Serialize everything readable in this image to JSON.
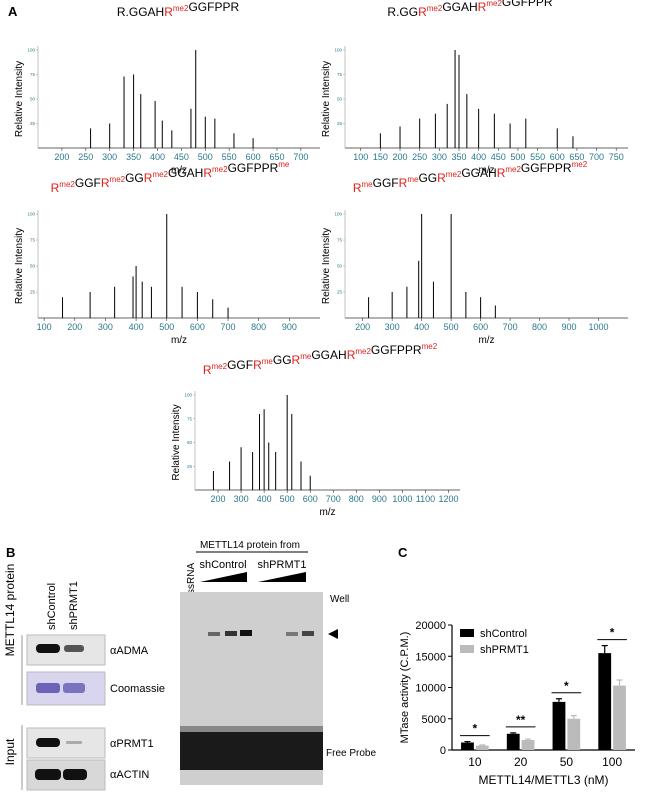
{
  "panel_a": {
    "label": "A"
  },
  "panel_b": {
    "label": "B",
    "blot": {
      "group_labels": [
        "METTL14 protein",
        "Input"
      ],
      "lanes": [
        "shControl",
        "shPRMT1"
      ],
      "rows": [
        "αADMA",
        "Coomassie",
        "αPRMT1",
        "αACTIN"
      ]
    },
    "gel": {
      "header": "METTL14 protein from",
      "lanes": [
        "ssRNA",
        "shControl",
        "shPRMT1"
      ],
      "well": "Well",
      "free_probe": "Free Probe"
    }
  },
  "panel_c": {
    "label": "C"
  },
  "chart_data": [
    {
      "type": "stem",
      "title": [
        {
          "text": "R.GGAH"
        },
        {
          "text": "R",
          "sup": "me2"
        },
        {
          "text": "GGFPPR"
        }
      ],
      "xlabel": "m/z",
      "ylabel": "Relative Intensity",
      "xlim": [
        150,
        740
      ],
      "ylim": [
        0,
        100
      ],
      "xticks": [
        200,
        250,
        300,
        350,
        400,
        450,
        500,
        550,
        600,
        650,
        700
      ],
      "yticks": [
        25,
        50,
        75,
        100
      ],
      "color": "#000000",
      "x": [
        260,
        300,
        330,
        350,
        365,
        395,
        410,
        430,
        470,
        480,
        500,
        520,
        560,
        600
      ],
      "values": [
        20,
        25,
        73,
        75,
        55,
        48,
        28,
        18,
        40,
        100,
        32,
        30,
        15,
        10
      ]
    },
    {
      "type": "stem",
      "title": [
        {
          "text": "R.GG"
        },
        {
          "text": "R",
          "sup": "me2"
        },
        {
          "text": "GGAH"
        },
        {
          "text": "R",
          "sup": "me2"
        },
        {
          "text": "GGFPPR"
        }
      ],
      "xlabel": "m/z",
      "ylabel": "Relative Intensity",
      "xlim": [
        60,
        780
      ],
      "ylim": [
        0,
        100
      ],
      "xticks": [
        100,
        150,
        200,
        250,
        300,
        350,
        400,
        450,
        500,
        550,
        600,
        650,
        700,
        750
      ],
      "yticks": [
        25,
        50,
        75,
        100
      ],
      "color": "#000000",
      "x": [
        150,
        200,
        250,
        290,
        320,
        340,
        350,
        370,
        400,
        440,
        480,
        520,
        600,
        640
      ],
      "values": [
        15,
        22,
        30,
        35,
        45,
        100,
        95,
        55,
        40,
        35,
        25,
        30,
        20,
        12
      ]
    },
    {
      "type": "stem",
      "title": [
        {
          "text": "R",
          "sup": "me2"
        },
        {
          "text": "GGF"
        },
        {
          "text": "R",
          "sup": "me2"
        },
        {
          "text": "GG"
        },
        {
          "text": "R",
          "sup": "me2"
        },
        {
          "text": "GGAH"
        },
        {
          "text": "R",
          "sup": "me2"
        },
        {
          "text": "GGFPPR",
          "sup": "me"
        }
      ],
      "xlabel": "m/z",
      "ylabel": "Relative Intensity",
      "xlim": [
        80,
        1000
      ],
      "ylim": [
        0,
        100
      ],
      "xticks": [
        100,
        200,
        300,
        400,
        500,
        600,
        700,
        800,
        900
      ],
      "yticks": [
        25,
        50,
        75,
        100
      ],
      "color": "#000000",
      "x": [
        160,
        250,
        330,
        390,
        400,
        420,
        450,
        500,
        550,
        600,
        650,
        700
      ],
      "values": [
        20,
        25,
        30,
        40,
        50,
        35,
        30,
        100,
        30,
        25,
        18,
        10
      ]
    },
    {
      "type": "stem",
      "title": [
        {
          "text": "R",
          "sup": "me"
        },
        {
          "text": "GGF"
        },
        {
          "text": "R",
          "sup": "me"
        },
        {
          "text": "GG"
        },
        {
          "text": "R",
          "sup": "me2"
        },
        {
          "text": "GGAH"
        },
        {
          "text": "R",
          "sup": "me2"
        },
        {
          "text": "GGFPPR",
          "sup": "me2"
        }
      ],
      "xlabel": "m/z",
      "ylabel": "Relative Intensity",
      "xlim": [
        140,
        1100
      ],
      "ylim": [
        0,
        100
      ],
      "xticks": [
        200,
        300,
        400,
        500,
        600,
        700,
        800,
        900,
        1000
      ],
      "yticks": [
        25,
        50,
        75,
        100
      ],
      "color": "#000000",
      "x": [
        220,
        300,
        350,
        390,
        400,
        440,
        500,
        550,
        600,
        650
      ],
      "values": [
        20,
        25,
        30,
        55,
        100,
        35,
        100,
        25,
        20,
        12
      ]
    },
    {
      "type": "stem",
      "title": [
        {
          "text": "R",
          "sup": "me2"
        },
        {
          "text": "GGF"
        },
        {
          "text": "R",
          "sup": "me"
        },
        {
          "text": "GG"
        },
        {
          "text": "R",
          "sup": "me"
        },
        {
          "text": "GGAH"
        },
        {
          "text": "R",
          "sup": "me2"
        },
        {
          "text": "GGFPPR",
          "sup": "me2"
        }
      ],
      "xlabel": "m/z",
      "ylabel": "Relative Intensity",
      "xlim": [
        100,
        1250
      ],
      "ylim": [
        0,
        100
      ],
      "xticks": [
        200,
        300,
        400,
        500,
        600,
        700,
        800,
        900,
        1000,
        1100,
        1200
      ],
      "yticks": [
        25,
        50,
        75,
        100
      ],
      "color": "#000000",
      "x": [
        180,
        250,
        300,
        350,
        380,
        400,
        420,
        450,
        500,
        520,
        560,
        600
      ],
      "values": [
        20,
        30,
        45,
        40,
        80,
        85,
        50,
        40,
        100,
        80,
        30,
        15
      ]
    },
    {
      "type": "bar",
      "xlabel": "METTL14/METTL3 (nM)",
      "ylabel": "MTase activity (C.P.M.)",
      "categories": [
        "10",
        "20",
        "50",
        "100"
      ],
      "ylim": [
        0,
        20000
      ],
      "yticks": [
        0,
        5000,
        10000,
        15000,
        20000
      ],
      "legend": "top-left",
      "series": [
        {
          "name": "shControl",
          "color": "#000000",
          "values": [
            1200,
            2600,
            7700,
            15500
          ],
          "errors": [
            150,
            150,
            500,
            1200
          ]
        },
        {
          "name": "shPRMT1",
          "color": "#bbbbbb",
          "values": [
            700,
            1600,
            5000,
            10300
          ],
          "errors": [
            100,
            150,
            500,
            900
          ]
        }
      ],
      "annotations": [
        "*",
        "**",
        "*",
        "*"
      ]
    }
  ]
}
